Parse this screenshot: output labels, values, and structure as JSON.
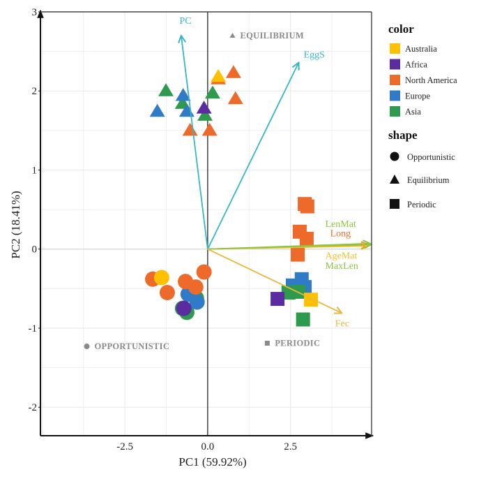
{
  "chart_data": {
    "type": "scatter",
    "title": "",
    "xlabel": "PC1 (59.92%)",
    "ylabel": "PC2 (18.41%)",
    "xlim": [
      -5.05,
      4.95
    ],
    "ylim": [
      -2.36,
      3.0
    ],
    "grid": true,
    "x_ticks": [
      {
        "value": -2.5,
        "label": "-2.5"
      },
      {
        "value": 0.0,
        "label": "0.0"
      },
      {
        "value": 2.5,
        "label": "2.5"
      }
    ],
    "y_ticks": [
      {
        "value": -2,
        "label": "-2"
      },
      {
        "value": -1,
        "label": "-1"
      },
      {
        "value": 0,
        "label": "0"
      },
      {
        "value": 1,
        "label": "1"
      },
      {
        "value": 2,
        "label": "2"
      },
      {
        "value": 3,
        "label": "3"
      }
    ],
    "colors": {
      "Australia": "#FFC000",
      "Africa": "#5B2C9F",
      "North America": "#EE6A2B",
      "Europe": "#2F7BC8",
      "Asia": "#2E9A4E"
    },
    "legend": {
      "placement": "right",
      "color_title": "color",
      "color_entries": [
        "Australia",
        "Africa",
        "North America",
        "Europe",
        "Asia"
      ],
      "shape_title": "shape",
      "shape_entries": [
        {
          "label": "Opportunistic",
          "shape": "circle"
        },
        {
          "label": "Equilibrium",
          "shape": "triangle"
        },
        {
          "label": "Periodic",
          "shape": "square"
        }
      ]
    },
    "points": [
      {
        "x": 0.32,
        "y": 2.15,
        "color": "North America",
        "shape": "triangle"
      },
      {
        "x": 0.32,
        "y": 2.18,
        "color": "Australia",
        "shape": "triangle"
      },
      {
        "x": -1.26,
        "y": 2.0,
        "color": "Asia",
        "shape": "triangle"
      },
      {
        "x": -0.76,
        "y": 1.84,
        "color": "Asia",
        "shape": "triangle"
      },
      {
        "x": -0.74,
        "y": 1.94,
        "color": "Europe",
        "shape": "triangle"
      },
      {
        "x": -1.52,
        "y": 1.74,
        "color": "Europe",
        "shape": "triangle"
      },
      {
        "x": -0.63,
        "y": 1.74,
        "color": "Europe",
        "shape": "triangle"
      },
      {
        "x": -0.53,
        "y": 1.5,
        "color": "North America",
        "shape": "triangle"
      },
      {
        "x": -0.08,
        "y": 1.69,
        "color": "Asia",
        "shape": "triangle"
      },
      {
        "x": -0.11,
        "y": 1.78,
        "color": "Africa",
        "shape": "triangle"
      },
      {
        "x": 0.06,
        "y": 1.5,
        "color": "North America",
        "shape": "triangle"
      },
      {
        "x": 0.15,
        "y": 1.97,
        "color": "Asia",
        "shape": "triangle"
      },
      {
        "x": 0.78,
        "y": 2.23,
        "color": "North America",
        "shape": "triangle"
      },
      {
        "x": 0.84,
        "y": 1.9,
        "color": "North America",
        "shape": "triangle"
      },
      {
        "x": -1.66,
        "y": -0.38,
        "color": "North America",
        "shape": "circle"
      },
      {
        "x": -1.39,
        "y": -0.36,
        "color": "Australia",
        "shape": "circle"
      },
      {
        "x": -1.22,
        "y": -0.55,
        "color": "North America",
        "shape": "circle"
      },
      {
        "x": -0.11,
        "y": -0.29,
        "color": "North America",
        "shape": "circle"
      },
      {
        "x": -0.34,
        "y": -0.62,
        "color": "Asia",
        "shape": "circle"
      },
      {
        "x": -0.76,
        "y": -0.75,
        "color": "Asia",
        "shape": "circle"
      },
      {
        "x": -0.63,
        "y": -0.8,
        "color": "Asia",
        "shape": "circle"
      },
      {
        "x": -0.59,
        "y": -0.57,
        "color": "Europe",
        "shape": "circle"
      },
      {
        "x": -0.32,
        "y": -0.67,
        "color": "Europe",
        "shape": "circle"
      },
      {
        "x": -0.67,
        "y": -0.41,
        "color": "North America",
        "shape": "circle"
      },
      {
        "x": -0.36,
        "y": -0.48,
        "color": "North America",
        "shape": "circle"
      },
      {
        "x": -0.72,
        "y": -0.75,
        "color": "Africa",
        "shape": "circle"
      },
      {
        "x": 2.93,
        "y": 0.57,
        "color": "North America",
        "shape": "square"
      },
      {
        "x": 3.01,
        "y": 0.54,
        "color": "North America",
        "shape": "square"
      },
      {
        "x": 2.78,
        "y": 0.22,
        "color": "North America",
        "shape": "square"
      },
      {
        "x": 2.99,
        "y": 0.13,
        "color": "North America",
        "shape": "square"
      },
      {
        "x": 2.72,
        "y": -0.07,
        "color": "North America",
        "shape": "square"
      },
      {
        "x": 2.84,
        "y": -0.38,
        "color": "Europe",
        "shape": "square"
      },
      {
        "x": 2.57,
        "y": -0.46,
        "color": "Europe",
        "shape": "square"
      },
      {
        "x": 2.93,
        "y": -0.48,
        "color": "Europe",
        "shape": "square"
      },
      {
        "x": 2.74,
        "y": -0.54,
        "color": "Asia",
        "shape": "square"
      },
      {
        "x": 2.44,
        "y": -0.55,
        "color": "Asia",
        "shape": "square"
      },
      {
        "x": 2.11,
        "y": -0.63,
        "color": "Africa",
        "shape": "square"
      },
      {
        "x": 3.12,
        "y": -0.64,
        "color": "Australia",
        "shape": "square"
      },
      {
        "x": 2.88,
        "y": -0.89,
        "color": "Asia",
        "shape": "square"
      }
    ],
    "vectors": [
      {
        "name": "PC",
        "x": -0.8,
        "y": 2.7,
        "color": "#35B6C6",
        "label_x": -0.85,
        "label_y": 2.85
      },
      {
        "name": "EggS",
        "x": 2.75,
        "y": 2.36,
        "color": "#35B6C6",
        "label_x": 2.9,
        "label_y": 2.42
      },
      {
        "name": "LenMat",
        "x": 4.9,
        "y": 0.07,
        "color": "#8CC63F",
        "label_x": 3.55,
        "label_y": 0.28
      },
      {
        "name": "Long",
        "x": 4.85,
        "y": 0.05,
        "color": "#EE6A2B",
        "label_x": 3.7,
        "label_y": 0.16
      },
      {
        "name": "AgeMat",
        "x": 4.85,
        "y": 0.04,
        "color": "#F0C030",
        "label_x": 3.55,
        "label_y": -0.12
      },
      {
        "name": "MaxLen",
        "x": 4.95,
        "y": 0.06,
        "color": "#8CC63F",
        "label_x": 3.55,
        "label_y": -0.25
      },
      {
        "name": "Fec",
        "x": 4.05,
        "y": -0.81,
        "color": "#E8B83A",
        "label_x": 3.85,
        "label_y": -0.98
      }
    ],
    "annotations": [
      {
        "text": "EQUILIBRIUM",
        "x": 0.75,
        "y": 2.7,
        "marker": "triangle"
      },
      {
        "text": "OPPORTUNISTIC",
        "x": -3.65,
        "y": -1.23,
        "marker": "circle"
      },
      {
        "text": "PERIODIC",
        "x": 1.8,
        "y": -1.19,
        "marker": "square"
      }
    ]
  }
}
